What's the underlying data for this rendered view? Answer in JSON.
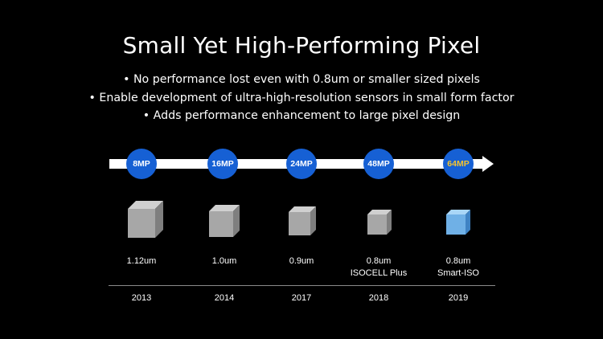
{
  "slide": {
    "title": "Small Yet High-Performing Pixel",
    "bullets": [
      "• No performance lost even with 0.8um or smaller sized pixels",
      "• Enable development of ultra-high-resolution sensors in small form factor",
      "• Adds performance enhancement to large pixel design"
    ]
  },
  "timeline": {
    "milestones": [
      {
        "mp": "8MP",
        "size": "1.12um",
        "note": "",
        "year": "2013",
        "cube_color": "grey"
      },
      {
        "mp": "16MP",
        "size": "1.0um",
        "note": "",
        "year": "2014",
        "cube_color": "grey"
      },
      {
        "mp": "24MP",
        "size": "0.9um",
        "note": "",
        "year": "2017",
        "cube_color": "grey"
      },
      {
        "mp": "48MP",
        "size": "0.8um",
        "note": "ISOCELL Plus",
        "year": "2018",
        "cube_color": "grey"
      },
      {
        "mp": "64MP",
        "size": "0.8um",
        "note": "Smart-ISO",
        "year": "2019",
        "cube_color": "blue"
      }
    ],
    "colors": {
      "badge": "#1660d4",
      "highlight_text": "#f4c430",
      "cube_grey": "#9a9a9a",
      "cube_blue": "#6fb0e6"
    }
  }
}
